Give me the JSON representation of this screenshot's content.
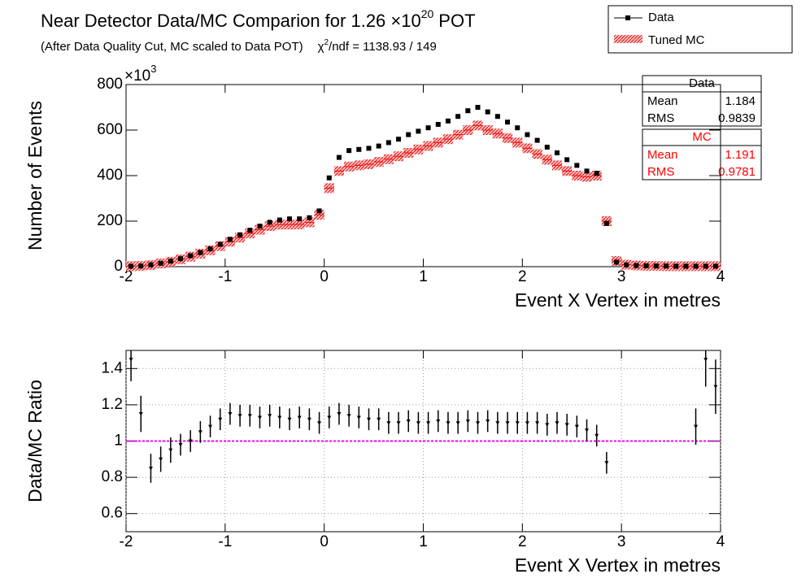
{
  "chart_data": [
    {
      "type": "histogram_compare",
      "title": "Near Detector Data/MC Comparion for 1.26 ×10",
      "title_superscript": "20",
      "title_end": "POT",
      "subtitle": "(After Data Quality Cut, MC scaled to Data POT)",
      "chi2_symbol": "χ",
      "chi2_superscript": "2",
      "chi2_text": "/ndf = 1138.93 / 149",
      "x_label": "Event X Vertex in metres",
      "y_label": "Number of Events",
      "y_multiplier": "×10",
      "y_multiplier_exponent": "3",
      "x": [
        -1.95,
        -1.85,
        -1.75,
        -1.65,
        -1.55,
        -1.45,
        -1.35,
        -1.25,
        -1.15,
        -1.05,
        -0.95,
        -0.85,
        -0.75,
        -0.65,
        -0.55,
        -0.45,
        -0.35,
        -0.25,
        -0.15,
        -0.05,
        0.05,
        0.15,
        0.25,
        0.35,
        0.45,
        0.55,
        0.65,
        0.75,
        0.85,
        0.95,
        1.05,
        1.15,
        1.25,
        1.35,
        1.45,
        1.55,
        1.65,
        1.75,
        1.85,
        1.95,
        2.05,
        2.15,
        2.25,
        2.35,
        2.45,
        2.55,
        2.65,
        2.75,
        2.85,
        2.95,
        3.05,
        3.15,
        3.25,
        3.35,
        3.45,
        3.55,
        3.65,
        3.75,
        3.85,
        3.95
      ],
      "series": [
        {
          "name": "Data",
          "color": "#000000",
          "values": [
            2,
            3,
            8,
            15,
            24,
            35,
            48,
            62,
            78,
            98,
            120,
            140,
            160,
            178,
            195,
            205,
            210,
            210,
            215,
            245,
            390,
            480,
            510,
            515,
            520,
            530,
            545,
            560,
            580,
            595,
            610,
            625,
            640,
            660,
            685,
            700,
            680,
            660,
            635,
            610,
            580,
            555,
            525,
            500,
            470,
            445,
            420,
            410,
            190,
            20,
            8,
            5,
            4,
            3,
            3,
            2,
            2,
            2,
            2,
            2
          ]
        },
        {
          "name": "Tuned MC",
          "color": "#ff0000",
          "values": [
            2,
            3,
            7,
            14,
            22,
            32,
            44,
            57,
            72,
            90,
            110,
            128,
            146,
            162,
            178,
            185,
            185,
            186,
            195,
            228,
            345,
            420,
            440,
            445,
            450,
            460,
            472,
            485,
            500,
            515,
            530,
            545,
            560,
            580,
            600,
            620,
            600,
            585,
            565,
            545,
            520,
            495,
            470,
            445,
            420,
            400,
            395,
            400,
            200,
            25,
            9,
            5,
            3,
            3,
            2,
            2,
            2,
            2,
            2,
            2
          ]
        }
      ],
      "stats": [
        {
          "name": "Data",
          "color": "#000000",
          "entries": [
            {
              "label": "Mean",
              "value": "1.184"
            },
            {
              "label": "RMS",
              "value": "0.9839"
            }
          ]
        },
        {
          "name": "MC",
          "color": "#ff0000",
          "entries": [
            {
              "label": "Mean",
              "value": "1.191"
            },
            {
              "label": "RMS",
              "value": "0.9781"
            }
          ]
        }
      ],
      "xlim": [
        -2,
        4
      ],
      "xticks": [
        -2,
        -1,
        0,
        1,
        2,
        3,
        4
      ],
      "ylim": [
        0,
        800
      ],
      "yticks": [
        0,
        200,
        400,
        600,
        800
      ],
      "grid": false
    },
    {
      "type": "ratio",
      "x_label": "Event X Vertex in metres",
      "y_label": "Data/MC Ratio",
      "x": [
        -1.95,
        -1.85,
        -1.75,
        -1.65,
        -1.55,
        -1.45,
        -1.35,
        -1.25,
        -1.15,
        -1.05,
        -0.95,
        -0.85,
        -0.75,
        -0.65,
        -0.55,
        -0.45,
        -0.35,
        -0.25,
        -0.15,
        -0.05,
        0.05,
        0.15,
        0.25,
        0.35,
        0.45,
        0.55,
        0.65,
        0.75,
        0.85,
        0.95,
        1.05,
        1.15,
        1.25,
        1.35,
        1.45,
        1.55,
        1.65,
        1.75,
        1.85,
        1.95,
        2.05,
        2.15,
        2.25,
        2.35,
        2.45,
        2.55,
        2.65,
        2.75,
        2.85,
        2.95,
        3.05,
        3.15,
        3.25,
        3.35,
        3.45,
        3.55,
        3.65,
        3.75,
        3.85,
        3.95
      ],
      "values": [
        1.45,
        1.15,
        0.85,
        0.9,
        0.95,
        0.98,
        1.0,
        1.05,
        1.08,
        1.12,
        1.15,
        1.14,
        1.14,
        1.13,
        1.14,
        1.13,
        1.12,
        1.13,
        1.12,
        1.1,
        1.13,
        1.15,
        1.14,
        1.13,
        1.12,
        1.12,
        1.1,
        1.1,
        1.11,
        1.1,
        1.1,
        1.11,
        1.1,
        1.1,
        1.11,
        1.1,
        1.11,
        1.1,
        1.1,
        1.1,
        1.1,
        1.1,
        1.09,
        1.1,
        1.09,
        1.08,
        1.06,
        1.03,
        0.88,
        null,
        null,
        null,
        null,
        null,
        null,
        null,
        null,
        1.08,
        1.45,
        1.3
      ],
      "errors": [
        0.12,
        0.1,
        0.08,
        0.07,
        0.07,
        0.06,
        0.06,
        0.06,
        0.06,
        0.06,
        0.06,
        0.06,
        0.06,
        0.06,
        0.06,
        0.06,
        0.06,
        0.06,
        0.06,
        0.06,
        0.06,
        0.06,
        0.06,
        0.06,
        0.06,
        0.06,
        0.06,
        0.06,
        0.06,
        0.06,
        0.06,
        0.06,
        0.06,
        0.06,
        0.06,
        0.06,
        0.06,
        0.06,
        0.06,
        0.06,
        0.06,
        0.06,
        0.06,
        0.06,
        0.06,
        0.06,
        0.06,
        0.06,
        0.06,
        null,
        null,
        null,
        null,
        null,
        null,
        null,
        null,
        0.1,
        0.15,
        0.15
      ],
      "color": "#000000",
      "reference_line": 1,
      "reference_color": "#ff00ff",
      "xlim": [
        -2,
        4
      ],
      "xticks": [
        -2,
        -1,
        0,
        1,
        2,
        3,
        4
      ],
      "ylim": [
        0.5,
        1.5
      ],
      "yticks": [
        0.6,
        0.8,
        1,
        1.2,
        1.4
      ],
      "grid": true
    }
  ]
}
